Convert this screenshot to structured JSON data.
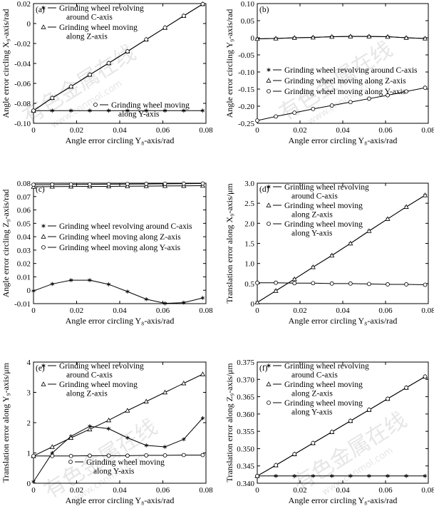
{
  "figure": {
    "watermark_text": "有色金属在线",
    "watermark_url": "www.cnnmol.com"
  },
  "chart_data": [
    {
      "type": "line",
      "panel_label": "(a)",
      "xlabel": "Angle error circling Y₈-axis/rad",
      "ylabel": "Angle error circling X₉-axis/rad",
      "xlim": [
        0,
        0.08
      ],
      "ylim": [
        -0.1,
        0.02
      ],
      "xticks": [
        "0",
        "0.02",
        "0.04",
        "0.06",
        "0.08"
      ],
      "yticks": [
        "-0.10",
        "-0.08",
        "-0.06",
        "-0.04",
        "-0.02",
        "0",
        "0.02"
      ],
      "x": [
        0,
        0.0087,
        0.0174,
        0.0261,
        0.0349,
        0.0436,
        0.0523,
        0.061,
        0.0697,
        0.0785
      ],
      "series": [
        {
          "name": "Grinding wheel revolving around C-axis",
          "marker": "star",
          "values": [
            -0.0873,
            -0.0873,
            -0.0873,
            -0.0873,
            -0.0873,
            -0.0873,
            -0.0873,
            -0.0873,
            -0.0873,
            -0.0873
          ]
        },
        {
          "name": "Grinding wheel moving along Z-axis",
          "marker": "triangle",
          "values": [
            -0.0873,
            -0.0746,
            -0.0632,
            -0.0513,
            -0.0397,
            -0.0279,
            -0.016,
            -0.0042,
            0.0077,
            0.0195
          ]
        },
        {
          "name": "Grinding wheel moving along Y-axis",
          "marker": "circle",
          "values": [
            -0.0873,
            -0.0746,
            -0.0632,
            -0.0513,
            -0.0397,
            -0.0279,
            -0.016,
            -0.0042,
            0.0077,
            0.0195
          ]
        }
      ],
      "legend": [
        {
          "marker": "star",
          "lines": [
            "Grinding wheel revolving",
            "around C-axis"
          ]
        },
        {
          "marker": "triangle",
          "lines": [
            "Grinding wheel moving",
            "along Z-axis"
          ]
        },
        {
          "marker": "circle",
          "lines": [
            "Grinding wheel moving",
            "along Y-axis"
          ]
        }
      ]
    },
    {
      "type": "line",
      "panel_label": "(b)",
      "xlabel": "Angle error circling Y₈-axis/rad",
      "ylabel": "Angle error circling Y₉-axis/rad",
      "xlim": [
        0,
        0.08
      ],
      "ylim": [
        -0.25,
        0.1
      ],
      "xticks": [
        "0",
        "0.02",
        "0.04",
        "0.06",
        "0.08"
      ],
      "yticks": [
        "-0.25",
        "-0.20",
        "-0.15",
        "-0.10",
        "-0.05",
        "0",
        "0.05",
        "0.10"
      ],
      "x": [
        0,
        0.0087,
        0.0174,
        0.0261,
        0.0349,
        0.0436,
        0.0523,
        0.061,
        0.0697,
        0.0785
      ],
      "series": [
        {
          "name": "Grinding wheel revolving around C-axis",
          "marker": "star",
          "values": [
            -0.003,
            -0.002,
            0.0,
            0.001,
            0.003,
            0.004,
            0.004,
            0.003,
            0.0,
            -0.002
          ]
        },
        {
          "name": "Grinding wheel moving along Z-axis",
          "marker": "triangle",
          "values": [
            -0.003,
            -0.002,
            0.0,
            0.001,
            0.003,
            0.004,
            0.004,
            0.003,
            0.0,
            -0.002
          ]
        },
        {
          "name": "Grinding wheel moving along Y-axis",
          "marker": "circle",
          "values": [
            -0.242,
            -0.23,
            -0.219,
            -0.208,
            -0.198,
            -0.188,
            -0.178,
            -0.168,
            -0.157,
            -0.146
          ]
        }
      ],
      "legend": [
        {
          "marker": "star",
          "lines": [
            "Grinding wheel revolving around C-axis"
          ]
        },
        {
          "marker": "triangle",
          "lines": [
            "Grinding wheel moving along Z-axis"
          ]
        },
        {
          "marker": "circle",
          "lines": [
            "Grinding wheel moving along Y-axis"
          ]
        }
      ]
    },
    {
      "type": "line",
      "panel_label": "(c)",
      "xlabel": "Angle error circling Y₈-axis/rad",
      "ylabel": "Angle error circling Z₉-axis/rad",
      "xlim": [
        0,
        0.08
      ],
      "ylim": [
        -0.01,
        0.085
      ],
      "xticks": [
        "0",
        "0.02",
        "0.04",
        "0.06",
        "0.08"
      ],
      "yticks": [
        "-0.01",
        "0",
        "0.01",
        "0.02",
        "0.03",
        "0.04",
        "0.05",
        "0.06",
        "0.07",
        "0.08"
      ],
      "x": [
        0,
        0.0087,
        0.0174,
        0.0261,
        0.0349,
        0.0436,
        0.0523,
        0.061,
        0.0697,
        0.0785
      ],
      "series": [
        {
          "name": "Grinding wheel revolving around C-axis",
          "marker": "star",
          "values": [
            0.0,
            0.0055,
            0.0085,
            0.0085,
            0.0052,
            -0.0005,
            -0.0065,
            -0.0098,
            -0.0092,
            -0.0055
          ]
        },
        {
          "name": "Grinding wheel moving along Z-axis",
          "marker": "triangle",
          "values": [
            0.0822,
            0.0823,
            0.0824,
            0.0825,
            0.0825,
            0.0826,
            0.0827,
            0.0828,
            0.0829,
            0.083
          ]
        },
        {
          "name": "Grinding wheel moving along Y-axis",
          "marker": "circle",
          "values": [
            0.0838,
            0.0839,
            0.084,
            0.0841,
            0.0842,
            0.0843,
            0.0844,
            0.0845,
            0.0846,
            0.0847
          ]
        }
      ],
      "legend": [
        {
          "marker": "star",
          "lines": [
            "Grinding wheel revolving around C-axis"
          ]
        },
        {
          "marker": "triangle",
          "lines": [
            "Grinding wheel moving along Z-axis"
          ]
        },
        {
          "marker": "circle",
          "lines": [
            "Grinding wheel moving along Y-axis"
          ]
        }
      ]
    },
    {
      "type": "line",
      "panel_label": "(d)",
      "xlabel": "Angle error circling Y₈-axis/rad",
      "ylabel": "Translation error along X₉-axis/μm",
      "xlim": [
        0,
        0.08
      ],
      "ylim": [
        0,
        3.0
      ],
      "xticks": [
        "0",
        "0.02",
        "0.04",
        "0.06",
        "0.08"
      ],
      "yticks": [
        "0",
        "0.5",
        "1.0",
        "1.5",
        "2.0",
        "2.5",
        "3.0"
      ],
      "x": [
        0,
        0.0087,
        0.0174,
        0.0261,
        0.0349,
        0.0436,
        0.0523,
        0.061,
        0.0697,
        0.0785
      ],
      "series": [
        {
          "name": "Grinding wheel revolving around C-axis",
          "marker": "star",
          "values": [
            0.03,
            0.32,
            0.61,
            0.91,
            1.2,
            1.5,
            1.81,
            2.11,
            2.41,
            2.7
          ]
        },
        {
          "name": "Grinding wheel moving along Z-axis",
          "marker": "triangle",
          "values": [
            0.03,
            0.32,
            0.61,
            0.91,
            1.2,
            1.5,
            1.81,
            2.11,
            2.41,
            2.7
          ]
        },
        {
          "name": "Grinding wheel moving along Y-axis",
          "marker": "circle",
          "values": [
            0.52,
            0.52,
            0.51,
            0.51,
            0.5,
            0.5,
            0.49,
            0.48,
            0.48,
            0.47
          ]
        }
      ],
      "legend": [
        {
          "marker": "star",
          "lines": [
            "Grinding wheel revolving",
            "around C-axis"
          ]
        },
        {
          "marker": "triangle",
          "lines": [
            "Grinding wheel moving",
            "along Z-axis"
          ]
        },
        {
          "marker": "circle",
          "lines": [
            "Grinding wheel moving",
            "along Y-axis"
          ]
        }
      ]
    },
    {
      "type": "line",
      "panel_label": "(e)",
      "xlabel": "Angle error circling Y₈-axis/rad",
      "ylabel": "Translation error along Y₉-axis/μm",
      "xlim": [
        0,
        0.08
      ],
      "ylim": [
        0,
        4.0
      ],
      "xticks": [
        "0",
        "0.02",
        "0.04",
        "0.06",
        "0.08"
      ],
      "yticks": [
        "0",
        "1",
        "2",
        "3",
        "4"
      ],
      "x": [
        0,
        0.0087,
        0.0174,
        0.0261,
        0.0349,
        0.0436,
        0.0523,
        0.061,
        0.0697,
        0.0785
      ],
      "series": [
        {
          "name": "Grinding wheel revolving around C-axis",
          "marker": "star",
          "values": [
            0.05,
            1.0,
            1.55,
            1.88,
            1.8,
            1.5,
            1.25,
            1.2,
            1.45,
            2.15
          ]
        },
        {
          "name": "Grinding wheel moving along Z-axis",
          "marker": "triangle",
          "values": [
            0.9,
            1.2,
            1.5,
            1.78,
            2.08,
            2.4,
            2.7,
            3.0,
            3.3,
            3.6
          ]
        },
        {
          "name": "Grinding wheel moving along Y-axis",
          "marker": "circle",
          "values": [
            0.9,
            0.9,
            0.9,
            0.91,
            0.91,
            0.91,
            0.92,
            0.92,
            0.93,
            0.93
          ]
        }
      ],
      "legend": [
        {
          "marker": "star",
          "lines": [
            "Grinding wheel revolving",
            "around C-axis"
          ]
        },
        {
          "marker": "triangle",
          "lines": [
            "Grinding wheel moving",
            "along Z-axis"
          ]
        },
        {
          "marker": "circle",
          "lines": [
            "Grinding wheel moving",
            "along Y-axis"
          ]
        }
      ]
    },
    {
      "type": "line",
      "panel_label": "(f)",
      "xlabel": "Angle error circling Y₈-axis/rad",
      "ylabel": "Translation error along Z₉-axis/μm",
      "xlim": [
        0,
        0.08
      ],
      "ylim": [
        0.34,
        0.375
      ],
      "xticks": [
        "0",
        "0.02",
        "0.04",
        "0.06",
        "0.08"
      ],
      "yticks": [
        "0.340",
        "0.345",
        "0.350",
        "0.355",
        "0.360",
        "0.365",
        "0.370",
        "0.375"
      ],
      "x": [
        0,
        0.0087,
        0.0174,
        0.0261,
        0.0349,
        0.0436,
        0.0523,
        0.061,
        0.0697,
        0.0785
      ],
      "series": [
        {
          "name": "Grinding wheel revolving around C-axis",
          "marker": "star",
          "values": [
            0.3421,
            0.3421,
            0.3421,
            0.3421,
            0.3421,
            0.3421,
            0.3421,
            0.3421,
            0.3421,
            0.3421
          ]
        },
        {
          "name": "Grinding wheel moving along Z-axis",
          "marker": "triangle",
          "values": [
            0.3421,
            0.3452,
            0.3484,
            0.3516,
            0.3548,
            0.358,
            0.3612,
            0.3644,
            0.3676,
            0.3708
          ]
        },
        {
          "name": "Grinding wheel moving along Y-axis",
          "marker": "circle",
          "values": [
            0.3421,
            0.3452,
            0.3484,
            0.3516,
            0.3548,
            0.358,
            0.3612,
            0.3644,
            0.3676,
            0.3708
          ]
        }
      ],
      "legend": [
        {
          "marker": "star",
          "lines": [
            "Grinding wheel revolving",
            "around C-axis"
          ]
        },
        {
          "marker": "triangle",
          "lines": [
            "Grinding wheel moving",
            "along Z-axis"
          ]
        },
        {
          "marker": "circle",
          "lines": [
            "Grinding wheel moving",
            "along Y-axis"
          ]
        }
      ]
    }
  ]
}
